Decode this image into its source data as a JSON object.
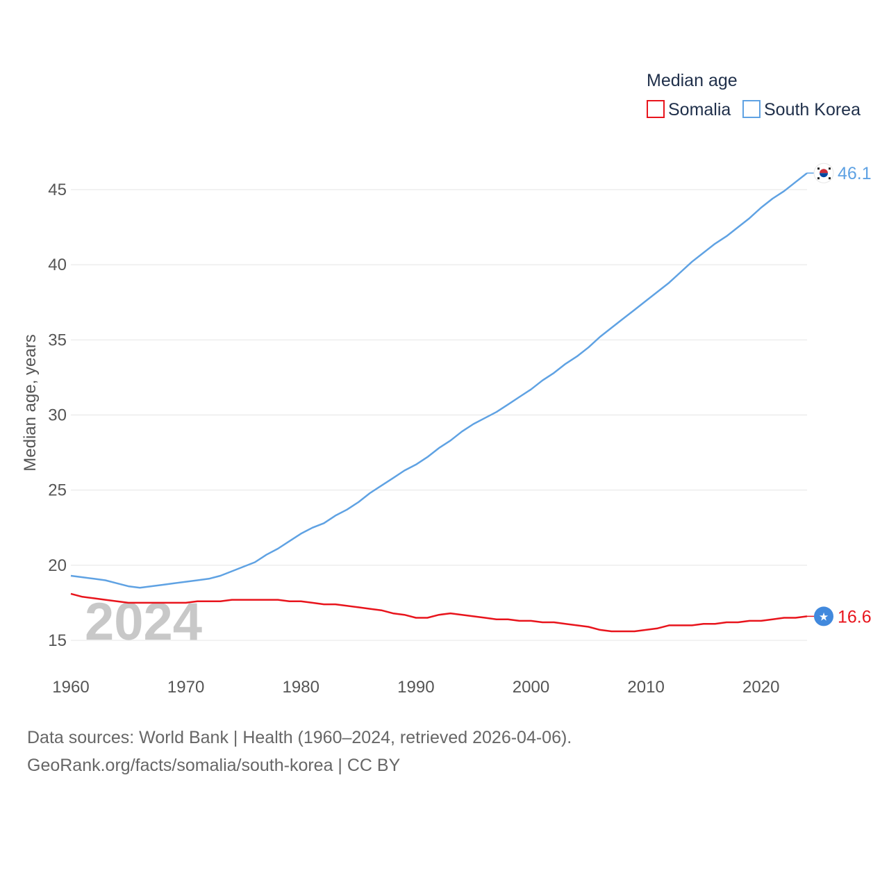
{
  "legend": {
    "title": "Median age",
    "items": [
      {
        "label": "Somalia",
        "color": "#e8141c"
      },
      {
        "label": "South Korea",
        "color": "#5fa2e3"
      }
    ]
  },
  "watermark": "2024",
  "footer": {
    "line1": "Data sources: World Bank | Health (1960–2024, retrieved 2026-04-06).",
    "line2": "GeoRank.org/facts/somalia/south-korea | CC BY"
  },
  "chart_data": {
    "type": "line",
    "title": "Median age",
    "xlabel": "",
    "ylabel": "Median age, years",
    "xlim": [
      1960,
      2024
    ],
    "ylim": [
      13.5,
      46.5
    ],
    "x_ticks": [
      1960,
      1970,
      1980,
      1990,
      2000,
      2010,
      2020
    ],
    "y_ticks": [
      15,
      20,
      25,
      30,
      35,
      40,
      45
    ],
    "grid": true,
    "legend_position": "top-right",
    "x": [
      1960,
      1961,
      1962,
      1963,
      1964,
      1965,
      1966,
      1967,
      1968,
      1969,
      1970,
      1971,
      1972,
      1973,
      1974,
      1975,
      1976,
      1977,
      1978,
      1979,
      1980,
      1981,
      1982,
      1983,
      1984,
      1985,
      1986,
      1987,
      1988,
      1989,
      1990,
      1991,
      1992,
      1993,
      1994,
      1995,
      1996,
      1997,
      1998,
      1999,
      2000,
      2001,
      2002,
      2003,
      2004,
      2005,
      2006,
      2007,
      2008,
      2009,
      2010,
      2011,
      2012,
      2013,
      2014,
      2015,
      2016,
      2017,
      2018,
      2019,
      2020,
      2021,
      2022,
      2023,
      2024
    ],
    "series": [
      {
        "name": "Somalia",
        "color": "#e8141c",
        "end_label": "16.6",
        "flag": "somalia-flag",
        "values": [
          18.1,
          17.9,
          17.8,
          17.7,
          17.6,
          17.5,
          17.5,
          17.5,
          17.5,
          17.5,
          17.5,
          17.6,
          17.6,
          17.6,
          17.7,
          17.7,
          17.7,
          17.7,
          17.7,
          17.6,
          17.6,
          17.5,
          17.4,
          17.4,
          17.3,
          17.2,
          17.1,
          17.0,
          16.8,
          16.7,
          16.5,
          16.5,
          16.7,
          16.8,
          16.7,
          16.6,
          16.5,
          16.4,
          16.4,
          16.3,
          16.3,
          16.2,
          16.2,
          16.1,
          16.0,
          15.9,
          15.7,
          15.6,
          15.6,
          15.6,
          15.7,
          15.8,
          16.0,
          16.0,
          16.0,
          16.1,
          16.1,
          16.2,
          16.2,
          16.3,
          16.3,
          16.4,
          16.5,
          16.5,
          16.6
        ]
      },
      {
        "name": "South Korea",
        "color": "#5fa2e3",
        "end_label": "46.1",
        "flag": "south-korea-flag",
        "values": [
          19.3,
          19.2,
          19.1,
          19.0,
          18.8,
          18.6,
          18.5,
          18.6,
          18.7,
          18.8,
          18.9,
          19.0,
          19.1,
          19.3,
          19.6,
          19.9,
          20.2,
          20.7,
          21.1,
          21.6,
          22.1,
          22.5,
          22.8,
          23.3,
          23.7,
          24.2,
          24.8,
          25.3,
          25.8,
          26.3,
          26.7,
          27.2,
          27.8,
          28.3,
          28.9,
          29.4,
          29.8,
          30.2,
          30.7,
          31.2,
          31.7,
          32.3,
          32.8,
          33.4,
          33.9,
          34.5,
          35.2,
          35.8,
          36.4,
          37.0,
          37.6,
          38.2,
          38.8,
          39.5,
          40.2,
          40.8,
          41.4,
          41.9,
          42.5,
          43.1,
          43.8,
          44.4,
          44.9,
          45.5,
          46.1
        ]
      }
    ]
  }
}
